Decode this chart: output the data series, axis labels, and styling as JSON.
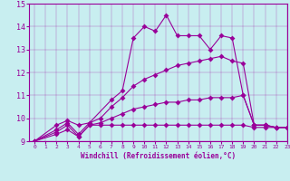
{
  "xlabel": "Windchill (Refroidissement éolien,°C)",
  "bg_color": "#c8eef0",
  "line_color": "#990099",
  "grid_color": "#aadddd",
  "ylim": [
    9,
    15
  ],
  "xlim": [
    -0.5,
    23
  ],
  "yticks": [
    9,
    10,
    11,
    12,
    13,
    14,
    15
  ],
  "xticks": [
    0,
    1,
    2,
    3,
    4,
    5,
    6,
    7,
    8,
    9,
    10,
    11,
    12,
    13,
    14,
    15,
    16,
    17,
    18,
    19,
    20,
    21,
    22,
    23
  ],
  "lines": [
    {
      "x": [
        0,
        2,
        3,
        4,
        5,
        7,
        8,
        9,
        10,
        11,
        12,
        13,
        14,
        15,
        16,
        17,
        18,
        19,
        20,
        21,
        22,
        23
      ],
      "y": [
        9.0,
        9.7,
        9.9,
        9.7,
        9.8,
        10.8,
        11.2,
        13.5,
        14.0,
        13.8,
        14.5,
        13.6,
        13.6,
        13.6,
        13.0,
        13.6,
        13.5,
        11.0,
        9.7,
        9.7,
        9.6,
        9.6
      ]
    },
    {
      "x": [
        0,
        2,
        3,
        4,
        5,
        6,
        7,
        8,
        9,
        10,
        11,
        12,
        13,
        14,
        15,
        16,
        17,
        18,
        19,
        20,
        21,
        22,
        23
      ],
      "y": [
        9.0,
        9.5,
        9.8,
        9.3,
        9.8,
        10.0,
        10.5,
        10.9,
        11.4,
        11.7,
        11.9,
        12.1,
        12.3,
        12.4,
        12.5,
        12.6,
        12.7,
        12.5,
        12.4,
        9.7,
        9.7,
        9.6,
        9.6
      ]
    },
    {
      "x": [
        0,
        2,
        3,
        4,
        5,
        6,
        7,
        8,
        9,
        10,
        11,
        12,
        13,
        14,
        15,
        16,
        17,
        18,
        19,
        20,
        21,
        22,
        23
      ],
      "y": [
        9.0,
        9.4,
        9.7,
        9.2,
        9.7,
        9.8,
        10.0,
        10.2,
        10.4,
        10.5,
        10.6,
        10.7,
        10.7,
        10.8,
        10.8,
        10.9,
        10.9,
        10.9,
        11.0,
        9.7,
        9.7,
        9.6,
        9.6
      ]
    },
    {
      "x": [
        0,
        2,
        3,
        4,
        5,
        6,
        7,
        8,
        9,
        10,
        11,
        12,
        13,
        14,
        15,
        16,
        17,
        18,
        19,
        20,
        21,
        22,
        23
      ],
      "y": [
        9.0,
        9.3,
        9.5,
        9.2,
        9.7,
        9.7,
        9.7,
        9.7,
        9.7,
        9.7,
        9.7,
        9.7,
        9.7,
        9.7,
        9.7,
        9.7,
        9.7,
        9.7,
        9.7,
        9.6,
        9.6,
        9.6,
        9.6
      ]
    }
  ]
}
